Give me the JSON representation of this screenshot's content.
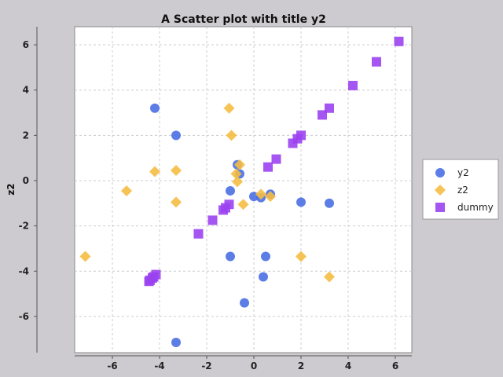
{
  "chart_data": {
    "type": "scatter",
    "title": "A Scatter plot with title y2",
    "xlabel": "",
    "ylabel": "z2",
    "xlim": [
      -7.6,
      6.7
    ],
    "ylim": [
      -7.6,
      6.8
    ],
    "xticks": [
      -6,
      -4,
      -2,
      0,
      2,
      4,
      6
    ],
    "yticks": [
      -6,
      -4,
      -2,
      0,
      2,
      4,
      6
    ],
    "grid": true,
    "legend_position": "right",
    "series": [
      {
        "name": "y2",
        "marker": "circle",
        "color": "#4a6fe3",
        "points": [
          [
            -4.2,
            3.2
          ],
          [
            -3.3,
            2.0
          ],
          [
            -0.7,
            0.7
          ],
          [
            -0.6,
            0.3
          ],
          [
            -1.0,
            -0.45
          ],
          [
            0.0,
            -0.7
          ],
          [
            0.3,
            -0.75
          ],
          [
            0.7,
            -0.6
          ],
          [
            2.0,
            -0.95
          ],
          [
            3.2,
            -1.0
          ],
          [
            -1.0,
            -3.35
          ],
          [
            0.5,
            -3.35
          ],
          [
            0.4,
            -4.25
          ],
          [
            -0.4,
            -5.4
          ],
          [
            -3.3,
            -7.15
          ]
        ]
      },
      {
        "name": "z2",
        "marker": "diamond",
        "color": "#f5bd42",
        "points": [
          [
            -1.05,
            3.2
          ],
          [
            -0.95,
            2.0
          ],
          [
            -0.6,
            0.7
          ],
          [
            -0.75,
            0.3
          ],
          [
            -0.7,
            -0.05
          ],
          [
            -4.2,
            0.4
          ],
          [
            -3.3,
            0.45
          ],
          [
            -5.4,
            -0.45
          ],
          [
            -3.3,
            -0.95
          ],
          [
            -0.45,
            -1.05
          ],
          [
            0.3,
            -0.6
          ],
          [
            0.7,
            -0.7
          ],
          [
            -7.15,
            -3.35
          ],
          [
            2.0,
            -3.35
          ],
          [
            3.2,
            -4.25
          ]
        ]
      },
      {
        "name": "dummy",
        "marker": "square",
        "color": "#9b42f0",
        "points": [
          [
            6.15,
            6.15
          ],
          [
            5.2,
            5.25
          ],
          [
            4.2,
            4.2
          ],
          [
            3.2,
            3.2
          ],
          [
            2.9,
            2.9
          ],
          [
            2.0,
            2.0
          ],
          [
            1.85,
            1.85
          ],
          [
            1.65,
            1.65
          ],
          [
            0.95,
            0.95
          ],
          [
            0.6,
            0.6
          ],
          [
            -1.05,
            -1.05
          ],
          [
            -1.2,
            -1.2
          ],
          [
            -1.3,
            -1.3
          ],
          [
            -1.75,
            -1.75
          ],
          [
            -2.35,
            -2.35
          ],
          [
            -4.15,
            -4.15
          ],
          [
            -4.25,
            -4.25
          ],
          [
            -4.3,
            -4.3
          ],
          [
            -4.4,
            -4.4
          ],
          [
            -4.45,
            -4.45
          ]
        ]
      }
    ]
  }
}
